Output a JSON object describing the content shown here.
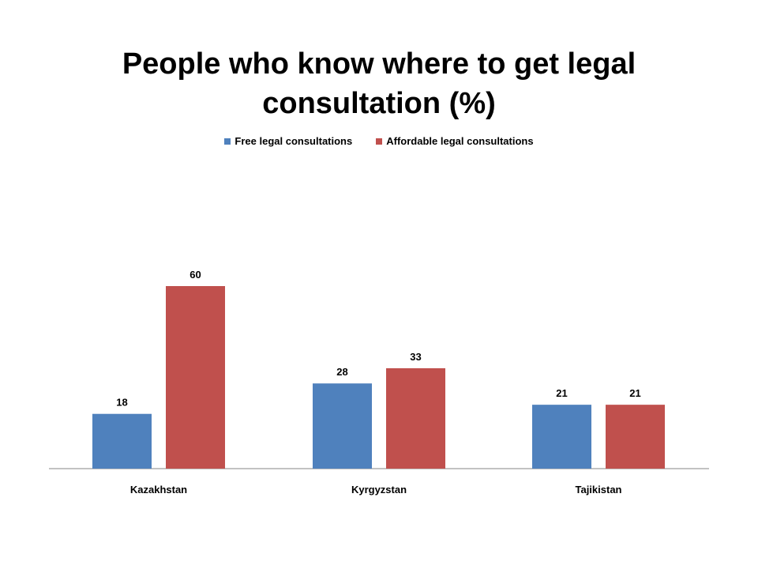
{
  "chart_data": {
    "type": "bar",
    "title": "People who know where to get legal consultation (%)",
    "categories": [
      "Kazakhstan",
      "Kyrgyzstan",
      "Tajikistan"
    ],
    "series": [
      {
        "name": "Free legal consultations",
        "values": [
          18,
          28,
          21
        ],
        "color": "#4F81BD"
      },
      {
        "name": "Affordable legal consultations",
        "values": [
          60,
          33,
          21
        ],
        "color": "#C0504D"
      }
    ],
    "xlabel": "",
    "ylabel": "",
    "ylim": [
      0,
      70
    ],
    "grid": false,
    "legend_position": "top",
    "data_labels": true
  }
}
